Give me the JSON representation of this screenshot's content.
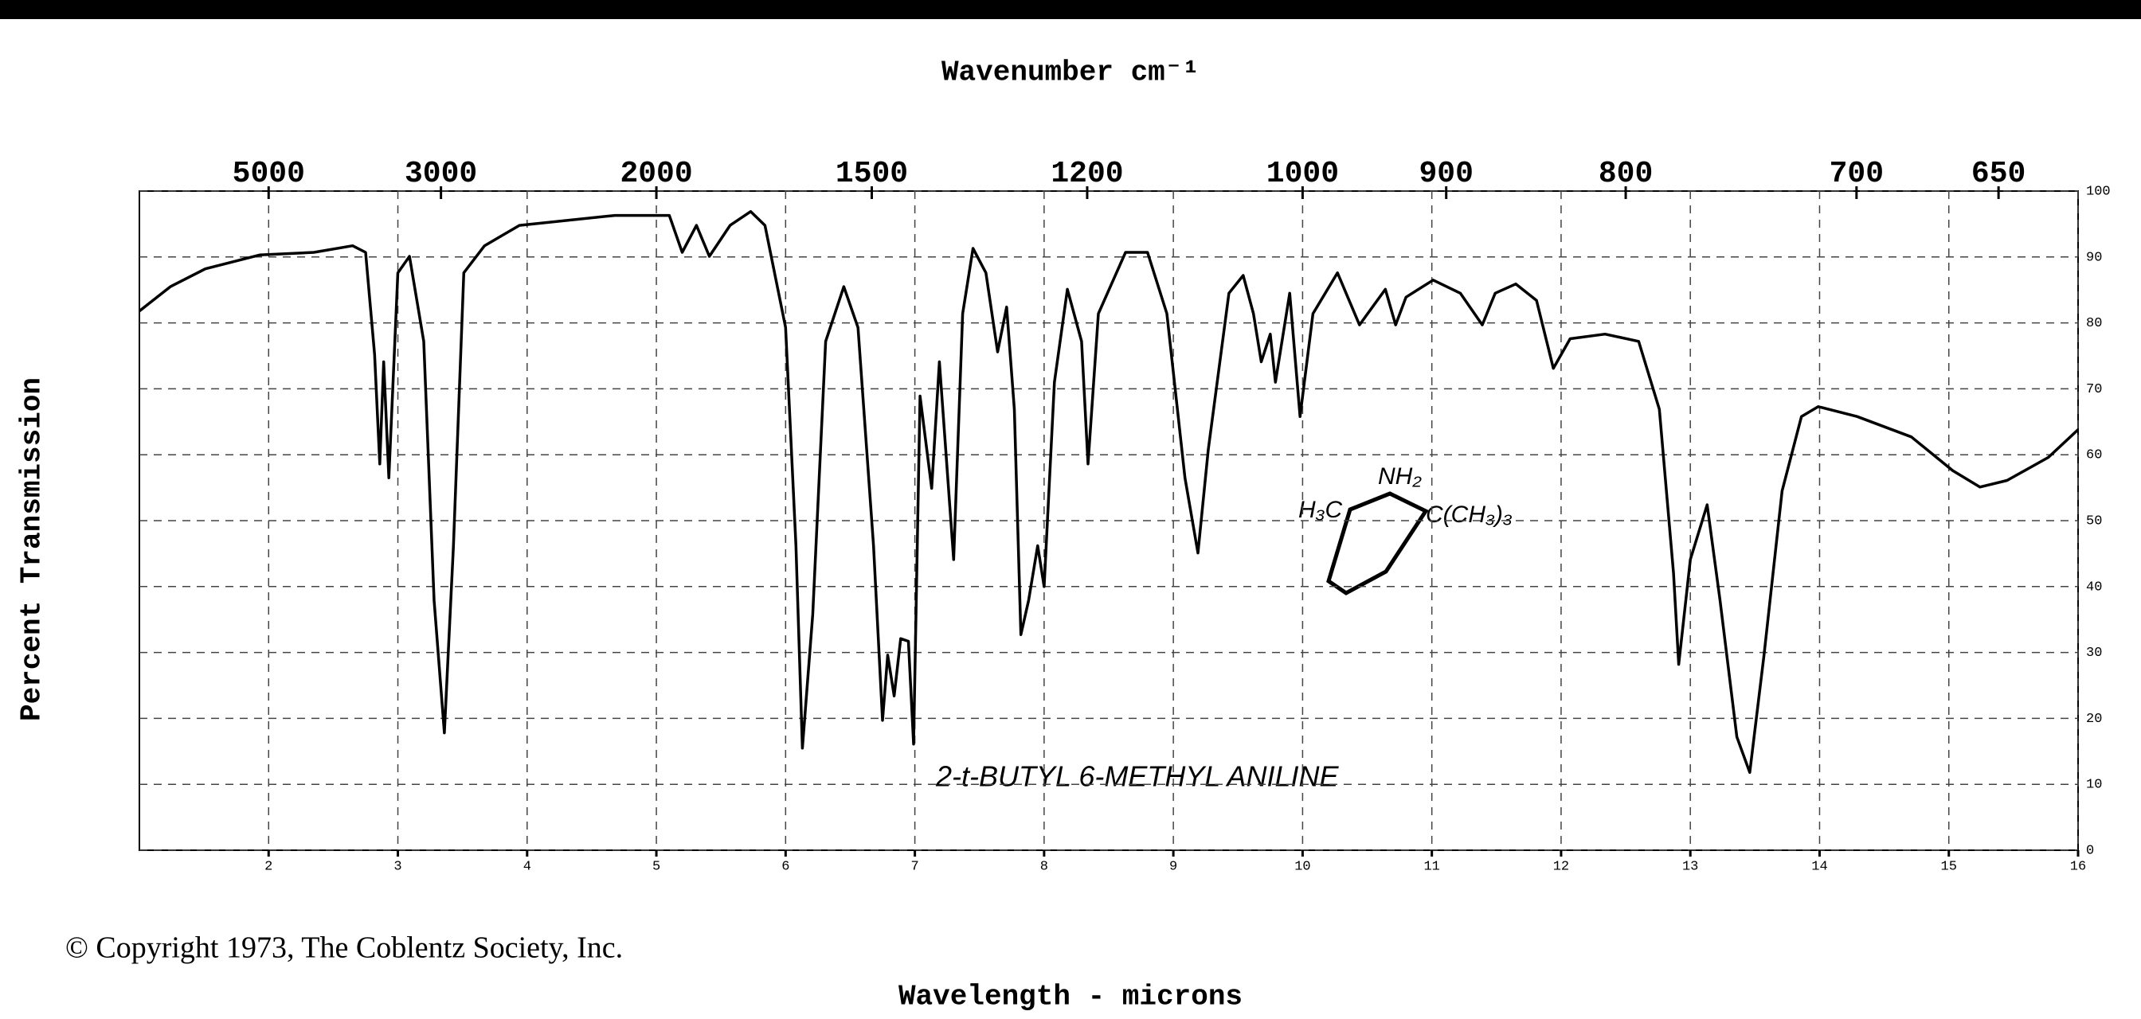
{
  "chart_data": {
    "type": "line",
    "title": "Wavenumber cm⁻¹",
    "xlabel": "Wavelength - microns",
    "ylabel": "Percent Transmission",
    "annotations": [
      "2-t-BUTYL 6-METHYL ANILINE",
      "© Copyright 1973, The Coblentz Society, Inc.",
      "NH₂",
      "H₃C",
      "C(CH₃)₃"
    ],
    "color": "#000000",
    "grid": true,
    "xlim": [
      1,
      16
    ],
    "ylim": [
      0,
      100
    ],
    "xticks": [
      2,
      3,
      4,
      5,
      6,
      7,
      8,
      9,
      10,
      11,
      12,
      13,
      14,
      15,
      16
    ],
    "x2ticks": [
      5000,
      3000,
      2000,
      1500,
      1200,
      1000,
      900,
      800,
      700,
      650
    ],
    "yticks": [
      0,
      10,
      20,
      30,
      40,
      50,
      60,
      70,
      80,
      90,
      100
    ],
    "x": [
      1.0,
      1.24,
      1.51,
      1.93,
      2.35,
      2.65,
      2.75,
      2.82,
      2.86,
      2.89,
      2.93,
      3.0,
      3.09,
      3.2,
      3.28,
      3.36,
      3.43,
      3.51,
      3.67,
      3.94,
      4.68,
      5.1,
      5.2,
      5.31,
      5.41,
      5.57,
      5.73,
      5.84,
      6.0,
      6.08,
      6.13,
      6.21,
      6.31,
      6.45,
      6.56,
      6.68,
      6.75,
      6.79,
      6.84,
      6.89,
      6.95,
      6.99,
      7.04,
      7.13,
      7.19,
      7.3,
      7.37,
      7.45,
      7.55,
      7.64,
      7.71,
      7.77,
      7.82,
      7.88,
      7.95,
      8.0,
      8.08,
      8.18,
      8.29,
      8.34,
      8.42,
      8.63,
      8.8,
      8.95,
      9.09,
      9.19,
      9.27,
      9.43,
      9.54,
      9.62,
      9.68,
      9.75,
      9.79,
      9.9,
      9.98,
      10.08,
      10.27,
      10.44,
      10.64,
      10.72,
      10.8,
      11.01,
      11.22,
      11.39,
      11.49,
      11.65,
      11.81,
      11.94,
      12.07,
      12.34,
      12.6,
      12.76,
      12.87,
      12.91,
      13.0,
      13.13,
      13.23,
      13.36,
      13.46,
      13.57,
      13.71,
      13.86,
      13.99,
      14.29,
      14.71,
      15.03,
      15.24,
      15.45,
      15.77,
      16.0
    ],
    "values": [
      81.8,
      85.5,
      88.2,
      90.3,
      90.7,
      91.7,
      90.7,
      75.2,
      58.6,
      74.1,
      56.5,
      87.6,
      90.1,
      77.2,
      37.9,
      17.8,
      46.2,
      87.6,
      91.7,
      94.8,
      96.3,
      96.3,
      90.7,
      94.8,
      90.1,
      94.8,
      96.9,
      94.8,
      79.3,
      46.2,
      15.5,
      35.8,
      77.2,
      85.5,
      79.3,
      46.2,
      19.7,
      29.6,
      23.4,
      32.1,
      31.7,
      16.1,
      68.9,
      54.9,
      74.1,
      44.1,
      81.4,
      91.3,
      87.6,
      75.6,
      82.4,
      66.9,
      32.7,
      37.9,
      46.2,
      40.0,
      71.0,
      85.1,
      77.2,
      58.6,
      81.4,
      90.7,
      90.7,
      81.4,
      56.5,
      45.1,
      60.7,
      84.5,
      87.2,
      81.4,
      74.1,
      78.3,
      71.0,
      84.5,
      65.8,
      81.4,
      87.6,
      79.7,
      85.1,
      79.7,
      83.9,
      86.5,
      84.5,
      79.7,
      84.5,
      85.9,
      83.4,
      73.1,
      77.6,
      78.3,
      77.2,
      66.9,
      42.0,
      28.2,
      44.1,
      52.4,
      37.9,
      17.2,
      11.8,
      29.6,
      54.5,
      65.8,
      67.3,
      65.8,
      62.7,
      57.6,
      55.1,
      56.1,
      59.6,
      63.8
    ]
  }
}
